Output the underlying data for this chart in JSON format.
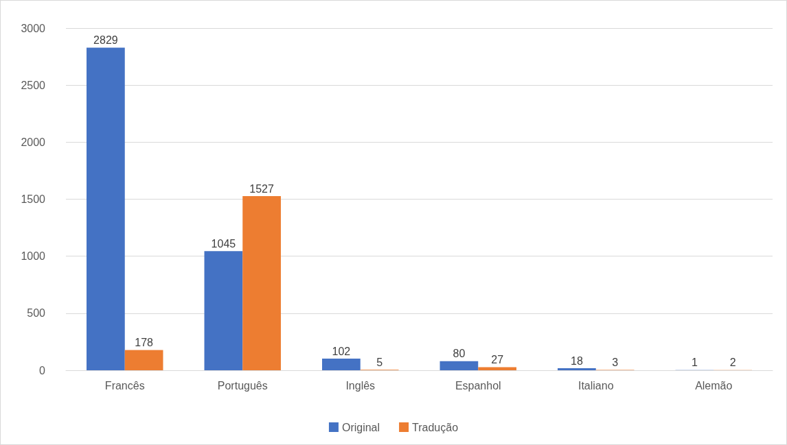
{
  "chart_data": {
    "type": "bar",
    "categories": [
      "Francês",
      "Português",
      "Inglês",
      "Espanhol",
      "Italiano",
      "Alemão"
    ],
    "series": [
      {
        "name": "Original",
        "color": "#4472c4",
        "values": [
          2829,
          1045,
          102,
          80,
          18,
          1
        ]
      },
      {
        "name": "Tradução",
        "color": "#ed7d31",
        "values": [
          178,
          1527,
          5,
          27,
          3,
          2
        ]
      }
    ],
    "ylim": [
      0,
      3000
    ],
    "yticks": [
      0,
      500,
      1000,
      1500,
      2000,
      2500,
      3000
    ],
    "grid": "y",
    "legend": "bottom",
    "data_labels": true
  }
}
